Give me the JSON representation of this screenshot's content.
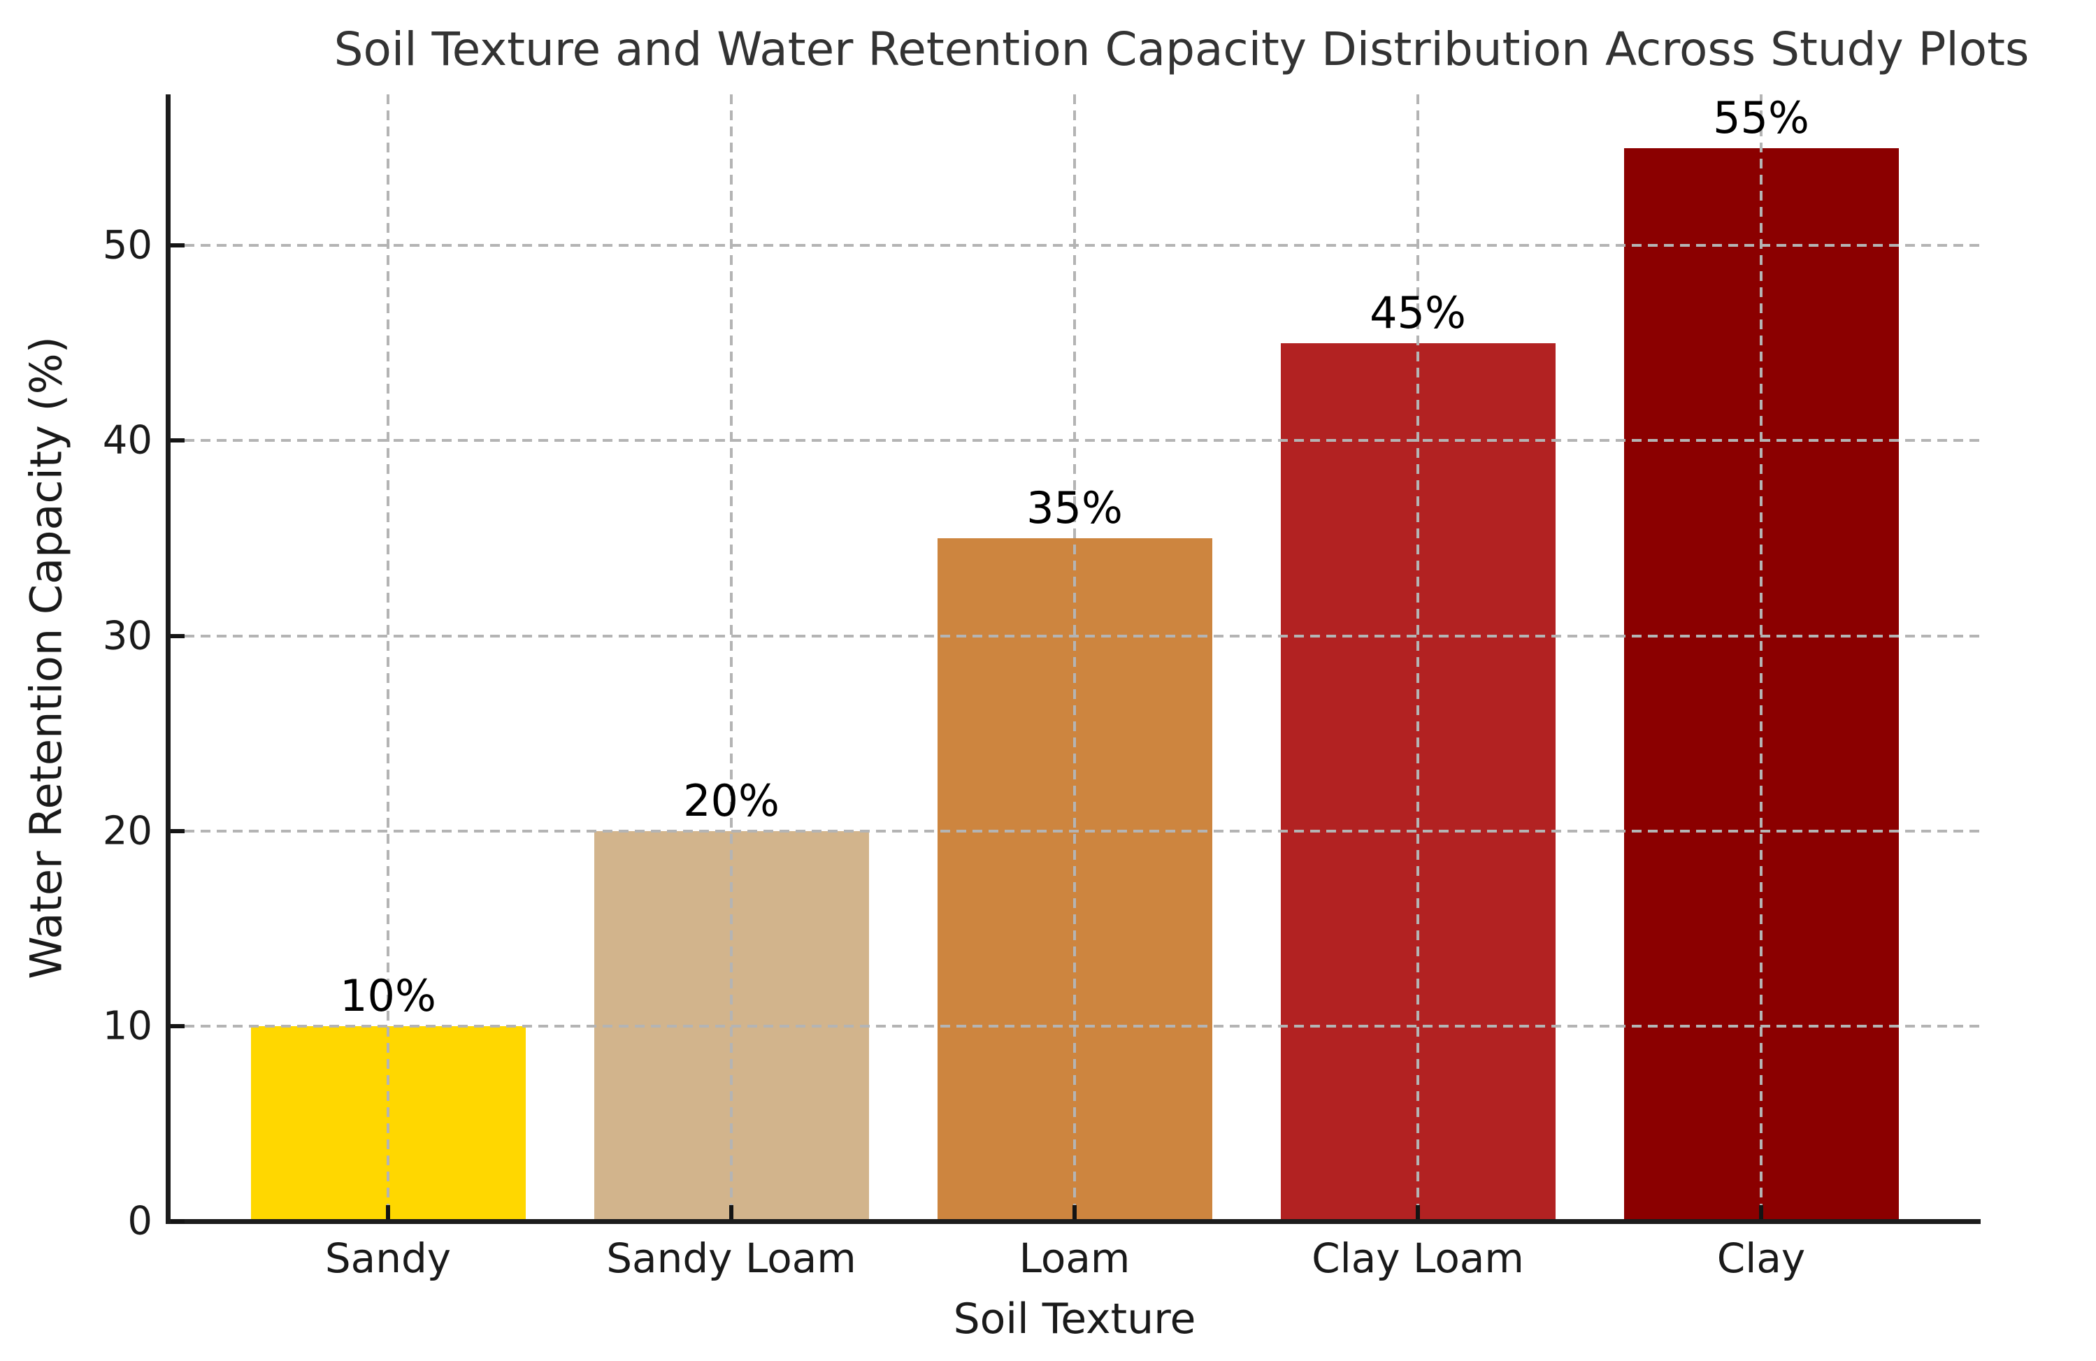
{
  "chart_data": {
    "type": "bar",
    "title": "Soil Texture and Water Retention Capacity Distribution Across Study Plots",
    "xlabel": "Soil Texture",
    "ylabel": "Water Retention Capacity (%)",
    "categories": [
      "Sandy",
      "Sandy Loam",
      "Loam",
      "Clay Loam",
      "Clay"
    ],
    "values": [
      10,
      20,
      35,
      45,
      55
    ],
    "value_labels": [
      "10%",
      "20%",
      "35%",
      "45%",
      "55%"
    ],
    "bar_colors": [
      "#FFD700",
      "#D2B48C",
      "#CD853F",
      "#B22222",
      "#8B0000"
    ],
    "yticks": [
      0,
      10,
      20,
      30,
      40,
      50
    ],
    "ylim": [
      0,
      57.75
    ],
    "bar_width_fraction": 0.8,
    "legend": "none",
    "grid": {
      "style": "dashed",
      "color": "#b4b4b4",
      "horizontal_at": [
        10,
        20,
        30,
        40,
        50
      ],
      "vertical_at_category_centers": true,
      "drawn_over_bars": true
    },
    "background": "#ffffff"
  },
  "colors": {
    "text": "#1a1a1a",
    "title": "#333333",
    "axis": "#1c1c1c",
    "grid": "#b4b4b4",
    "background": "#ffffff"
  }
}
